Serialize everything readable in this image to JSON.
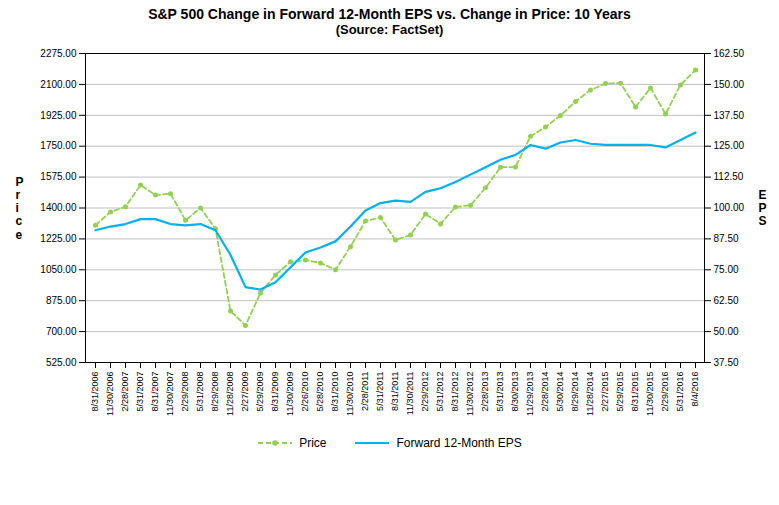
{
  "chart_data": {
    "type": "line",
    "title": "S&P 500 Change in Forward 12-Month EPS vs. Change in Price: 10 Years",
    "subtitle": "(Source: FactSet)",
    "ylabel": "P\nr\ni\nc\ne",
    "y2label": "E\nP\nS",
    "categories": [
      "8/31/2006",
      "11/30/2006",
      "2/28/2007",
      "5/31/2007",
      "8/31/2007",
      "11/30/2007",
      "2/29/2008",
      "5/31/2008",
      "8/29/2008",
      "11/28/2008",
      "2/27/2009",
      "5/29/2009",
      "8/31/2009",
      "11/30/2009",
      "2/26/2010",
      "5/28/2010",
      "8/31/2010",
      "11/30/2010",
      "2/28/2011",
      "5/31/2011",
      "8/31/2011",
      "11/30/2011",
      "2/29/2012",
      "5/31/2012",
      "8/31/2012",
      "11/30/2012",
      "2/28/2013",
      "5/31/2013",
      "8/30/2013",
      "11/29/2013",
      "2/28/2014",
      "5/30/2014",
      "8/29/2014",
      "11/28/2014",
      "2/27/2015",
      "5/29/2015",
      "8/31/2015",
      "11/30/2015",
      "2/29/2016",
      "5/31/2016",
      "8/4/2016"
    ],
    "ylim": [
      525.0,
      2275.0
    ],
    "yticks": [
      {
        "value": 525.0,
        "label": "525.00"
      },
      {
        "value": 700.0,
        "label": "700.00"
      },
      {
        "value": 875.0,
        "label": "875.00"
      },
      {
        "value": 1050.0,
        "label": "1050.00"
      },
      {
        "value": 1225.0,
        "label": "1225.00"
      },
      {
        "value": 1400.0,
        "label": "1400.00"
      },
      {
        "value": 1575.0,
        "label": "1575.00"
      },
      {
        "value": 1750.0,
        "label": "1750.00"
      },
      {
        "value": 1925.0,
        "label": "1925.00"
      },
      {
        "value": 2100.0,
        "label": "2100.00"
      },
      {
        "value": 2275.0,
        "label": "2275.00"
      }
    ],
    "y2lim": [
      37.5,
      162.5
    ],
    "y2ticks": [
      {
        "value": 37.5,
        "label": "37.50"
      },
      {
        "value": 50.0,
        "label": "50.00"
      },
      {
        "value": 62.5,
        "label": "62.50"
      },
      {
        "value": 75.0,
        "label": "75.00"
      },
      {
        "value": 87.5,
        "label": "87.50"
      },
      {
        "value": 100.0,
        "label": "100.00"
      },
      {
        "value": 112.5,
        "label": "112.50"
      },
      {
        "value": 125.0,
        "label": "125.00"
      },
      {
        "value": 137.5,
        "label": "137.50"
      },
      {
        "value": 150.0,
        "label": "150.00"
      },
      {
        "value": 162.5,
        "label": "162.50"
      }
    ],
    "grid": true,
    "legend": "bottom",
    "series": [
      {
        "name": "Price",
        "color": "#92d050",
        "line_style": "dashed",
        "marker": "circle",
        "values": [
          1303,
          1378,
          1407,
          1530,
          1473,
          1481,
          1330,
          1400,
          1282,
          816,
          735,
          919,
          1021,
          1095,
          1105,
          1089,
          1050,
          1181,
          1327,
          1346,
          1219,
          1247,
          1366,
          1310,
          1406,
          1416,
          1514,
          1631,
          1632,
          1806,
          1859,
          1924,
          2003,
          2068,
          2105,
          2107,
          1972,
          2080,
          1932,
          2097,
          2182
        ]
      },
      {
        "name": "Forward 12-Month EPS",
        "color": "#00b0f0",
        "line_style": "solid",
        "axis": "y2",
        "values": [
          91.0,
          92.5,
          93.5,
          95.5,
          95.5,
          93.5,
          93.0,
          93.5,
          91.0,
          81.0,
          68.0,
          67.0,
          70.0,
          76.0,
          82.0,
          84.0,
          86.5,
          92.5,
          99.0,
          102.0,
          103.0,
          102.5,
          106.5,
          108.0,
          110.5,
          113.5,
          116.5,
          119.5,
          121.5,
          125.5,
          124.0,
          126.5,
          127.5,
          126.0,
          125.5,
          125.5,
          125.5,
          125.5,
          124.5,
          127.5,
          130.5
        ]
      }
    ]
  }
}
